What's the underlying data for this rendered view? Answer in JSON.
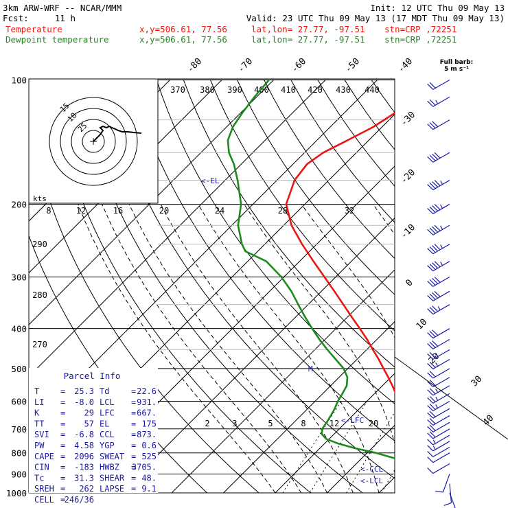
{
  "header": {
    "model": "3km ARW-WRF -- NCAR/MMM",
    "init": "Init: 12 UTC Thu 09 May 13",
    "fcst_label": "Fcst:",
    "fcst_value": "11 h",
    "valid": "Valid: 23 UTC Thu 09 May 13 (17 MDT Thu 09 May 13)",
    "temp_line": {
      "name": "Temperature",
      "xy": "x,y=506.61, 77.56",
      "latlon": "lat,lon= 27.77, -97.51",
      "stn": "stn=CRP ,72251"
    },
    "dew_line": {
      "name": "Dewpoint temperature",
      "xy": "x,y=506.61, 77.56",
      "latlon": "lat,lon= 27.77, -97.51",
      "stn": "stn=CRP ,72251"
    },
    "barb_legend_1": "Full barb:",
    "barb_legend_2": "5 m s⁻¹"
  },
  "colors": {
    "temperature": "#e8170f",
    "dewpoint": "#1d8a1d",
    "lines": "#000000",
    "parcel_text": "#1a1aa8",
    "hodograph": "#000000"
  },
  "hodograph": {
    "units": "kts",
    "ring_labels": [
      "15",
      "10",
      "25"
    ]
  },
  "parcel": {
    "title": "Parcel Info",
    "rows": [
      {
        "l1": "T",
        "v1": "25.3",
        "l2": "Td",
        "v2": "22.6"
      },
      {
        "l1": "LI",
        "v1": "-8.0",
        "l2": "LCL",
        "v2": "931."
      },
      {
        "l1": "K",
        "v1": "29",
        "l2": "LFC",
        "v2": "667."
      },
      {
        "l1": "TT",
        "v1": "57",
        "l2": "EL",
        "v2": "175"
      },
      {
        "l1": "SVI",
        "v1": "-6.8",
        "l2": "CCL",
        "v2": "873."
      },
      {
        "l1": "PW",
        "v1": "4.58",
        "l2": "YGP",
        "v2": "0.6"
      },
      {
        "l1": "CAPE",
        "v1": "2096",
        "l2": "SWEAT",
        "v2": "525"
      },
      {
        "l1": "CIN",
        "v1": "-183",
        "l2": "HWBZ",
        "v2": "3705."
      },
      {
        "l1": "Tc",
        "v1": "31.3",
        "l2": "SHEAR",
        "v2": "48."
      },
      {
        "l1": "SREH",
        "v1": "262",
        "l2": "LAPSE",
        "v2": "9.1"
      },
      {
        "l1": "CELL",
        "v1": "246/36",
        "l2": "",
        "v2": ""
      }
    ]
  },
  "level_markers": {
    "el": "<-EL",
    "lfc": "<-LFC",
    "ccl": "<-CCL",
    "lcl": "<-LCL",
    "m": "M"
  },
  "chart_data": {
    "type": "line",
    "title": "",
    "xlabel": "",
    "ylabel": "",
    "pressure_axis": [
      100,
      200,
      300,
      400,
      500,
      600,
      700,
      800,
      900,
      1000
    ],
    "isotherm_labels": [
      "-80",
      "-70",
      "-60",
      "-50",
      "-40",
      "-30",
      "-20",
      "-10",
      "0",
      "10",
      "20",
      "30",
      "40"
    ],
    "theta_labels": [
      "370",
      "380",
      "390",
      "400",
      "410",
      "420",
      "430",
      "440"
    ],
    "theta_left_labels": [
      "290",
      "280",
      "270"
    ],
    "mixing_ratio_labels": [
      "2",
      "3",
      "5",
      "8",
      "12",
      "20"
    ],
    "hodo_axis_labels": [
      "8",
      "12",
      "16",
      "20",
      "24",
      "28",
      "32"
    ],
    "series": [
      {
        "name": "Temperature",
        "points": [
          [
            1000,
            26.3
          ],
          [
            980,
            24.8
          ],
          [
            960,
            25.1
          ],
          [
            940,
            23.4
          ],
          [
            920,
            22.6
          ],
          [
            900,
            20.3
          ],
          [
            880,
            18.6
          ],
          [
            860,
            17.9
          ],
          [
            840,
            16.8
          ],
          [
            820,
            15.3
          ],
          [
            800,
            14.1
          ],
          [
            780,
            12.7
          ],
          [
            760,
            11.3
          ],
          [
            740,
            9.6
          ],
          [
            720,
            7.7
          ],
          [
            700,
            5.7
          ],
          [
            675,
            3.3
          ],
          [
            650,
            0.9
          ],
          [
            625,
            -1.2
          ],
          [
            600,
            -3.5
          ],
          [
            575,
            -5.9
          ],
          [
            550,
            -8.1
          ],
          [
            525,
            -10.5
          ],
          [
            500,
            -13.1
          ],
          [
            475,
            -15.8
          ],
          [
            450,
            -18.8
          ],
          [
            425,
            -21.9
          ],
          [
            400,
            -25.4
          ],
          [
            375,
            -29.2
          ],
          [
            350,
            -33.2
          ],
          [
            325,
            -37.5
          ],
          [
            300,
            -42.2
          ],
          [
            275,
            -47.3
          ],
          [
            250,
            -52.8
          ],
          [
            225,
            -58.5
          ],
          [
            200,
            -63.6
          ],
          [
            175,
            -66.6
          ],
          [
            160,
            -67.3
          ],
          [
            150,
            -66.4
          ],
          [
            140,
            -64.1
          ],
          [
            130,
            -61.7
          ],
          [
            120,
            -60.2
          ],
          [
            110,
            -59.7
          ],
          [
            100,
            -59.8
          ]
        ]
      },
      {
        "name": "Dewpoint temperature",
        "points": [
          [
            1000,
            22.5
          ],
          [
            985,
            21.8
          ],
          [
            970,
            20.7
          ],
          [
            955,
            21.4
          ],
          [
            940,
            20.0
          ],
          [
            920,
            19.7
          ],
          [
            900,
            18.1
          ],
          [
            880,
            16.2
          ],
          [
            860,
            13.2
          ],
          [
            840,
            9.3
          ],
          [
            820,
            5.5
          ],
          [
            800,
            1.7
          ],
          [
            780,
            -3.1
          ],
          [
            760,
            -7.3
          ],
          [
            740,
            -10.6
          ],
          [
            720,
            -12.4
          ],
          [
            700,
            -13.3
          ],
          [
            675,
            -13.7
          ],
          [
            650,
            -14.2
          ],
          [
            625,
            -14.8
          ],
          [
            600,
            -15.6
          ],
          [
            575,
            -16.2
          ],
          [
            550,
            -16.9
          ],
          [
            525,
            -18.4
          ],
          [
            500,
            -20.8
          ],
          [
            475,
            -24.1
          ],
          [
            450,
            -27.6
          ],
          [
            425,
            -31.1
          ],
          [
            400,
            -34.6
          ],
          [
            375,
            -38.2
          ],
          [
            350,
            -41.9
          ],
          [
            325,
            -45.8
          ],
          [
            300,
            -50.5
          ],
          [
            275,
            -56.4
          ],
          [
            260,
            -62.4
          ],
          [
            250,
            -64.4
          ],
          [
            225,
            -68.8
          ],
          [
            200,
            -72.3
          ],
          [
            175,
            -77.6
          ],
          [
            160,
            -81.4
          ],
          [
            150,
            -84.6
          ],
          [
            140,
            -87.2
          ],
          [
            130,
            -88.8
          ],
          [
            120,
            -89.7
          ],
          [
            110,
            -90.4
          ],
          [
            100,
            -90.9
          ]
        ]
      }
    ],
    "wind_barbs_ms": [
      {
        "p": 100,
        "spd": 12,
        "dir": 240
      },
      {
        "p": 110,
        "spd": 13,
        "dir": 240
      },
      {
        "p": 125,
        "spd": 16,
        "dir": 240
      },
      {
        "p": 150,
        "spd": 20,
        "dir": 240
      },
      {
        "p": 175,
        "spd": 24,
        "dir": 240
      },
      {
        "p": 200,
        "spd": 24,
        "dir": 240
      },
      {
        "p": 225,
        "spd": 24,
        "dir": 240
      },
      {
        "p": 250,
        "spd": 24,
        "dir": 240
      },
      {
        "p": 275,
        "spd": 24,
        "dir": 240
      },
      {
        "p": 300,
        "spd": 22,
        "dir": 240
      },
      {
        "p": 325,
        "spd": 20,
        "dir": 240
      },
      {
        "p": 350,
        "spd": 18,
        "dir": 240
      },
      {
        "p": 400,
        "spd": 16,
        "dir": 240
      },
      {
        "p": 425,
        "spd": 15,
        "dir": 240
      },
      {
        "p": 450,
        "spd": 14,
        "dir": 240
      },
      {
        "p": 475,
        "spd": 13,
        "dir": 240
      },
      {
        "p": 500,
        "spd": 12,
        "dir": 240
      },
      {
        "p": 525,
        "spd": 12,
        "dir": 240
      },
      {
        "p": 550,
        "spd": 13,
        "dir": 240
      },
      {
        "p": 575,
        "spd": 13,
        "dir": 240
      },
      {
        "p": 600,
        "spd": 14,
        "dir": 240
      },
      {
        "p": 625,
        "spd": 12,
        "dir": 240
      },
      {
        "p": 650,
        "spd": 11,
        "dir": 240
      },
      {
        "p": 675,
        "spd": 10,
        "dir": 240
      },
      {
        "p": 700,
        "spd": 10,
        "dir": 240
      },
      {
        "p": 725,
        "spd": 9,
        "dir": 240
      },
      {
        "p": 750,
        "spd": 8,
        "dir": 240
      },
      {
        "p": 775,
        "spd": 7,
        "dir": 240
      },
      {
        "p": 800,
        "spd": 6,
        "dir": 240
      },
      {
        "p": 850,
        "spd": 6,
        "dir": 240
      },
      {
        "p": 900,
        "spd": 7,
        "dir": 200
      },
      {
        "p": 950,
        "spd": 7,
        "dir": 175
      },
      {
        "p": 1000,
        "spd": 7,
        "dir": 160
      }
    ]
  }
}
